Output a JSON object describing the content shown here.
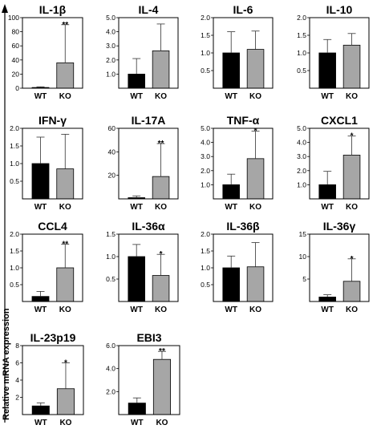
{
  "figure": {
    "ylabel": "Relative mRNA expression"
  },
  "colors": {
    "wt_bar": "#000000",
    "ko_bar": "#a6a6a6",
    "error_bar": "#333333",
    "axis": "#000000"
  },
  "chart_data": [
    {
      "type": "bar",
      "title": "IL-1β",
      "categories": [
        "WT",
        "KO"
      ],
      "values": [
        1,
        36
      ],
      "errors": [
        1,
        54
      ],
      "ylim": [
        0,
        100
      ],
      "yticks": [
        "0",
        "20",
        "40",
        "60",
        "80",
        "100"
      ],
      "annotations": [
        "",
        "**"
      ]
    },
    {
      "type": "bar",
      "title": "IL-4",
      "categories": [
        "WT",
        "KO"
      ],
      "values": [
        1.0,
        2.65
      ],
      "errors": [
        1.1,
        1.9
      ],
      "ylim": [
        0,
        5
      ],
      "yticks": [
        "1.0",
        "2.0",
        "3.0",
        "4.0",
        "5.0"
      ],
      "annotations": [
        "",
        ""
      ]
    },
    {
      "type": "bar",
      "title": "IL-6",
      "categories": [
        "WT",
        "KO"
      ],
      "values": [
        1.0,
        1.1
      ],
      "errors": [
        0.6,
        0.52
      ],
      "ylim": [
        0,
        2
      ],
      "yticks": [
        "0.5",
        "1.0",
        "1.5",
        "2.0"
      ],
      "annotations": [
        "",
        ""
      ]
    },
    {
      "type": "bar",
      "title": "IL-10",
      "categories": [
        "WT",
        "KO"
      ],
      "values": [
        1.0,
        1.22
      ],
      "errors": [
        0.38,
        0.33
      ],
      "ylim": [
        0,
        2
      ],
      "yticks": [
        "0.5",
        "1.0",
        "1.5",
        "2.0"
      ],
      "annotations": [
        "",
        ""
      ]
    },
    {
      "type": "bar",
      "title": "IFN-γ",
      "categories": [
        "WT",
        "KO"
      ],
      "values": [
        1.0,
        0.85
      ],
      "errors": [
        0.75,
        0.98
      ],
      "ylim": [
        0,
        2
      ],
      "yticks": [
        "0.5",
        "1.0",
        "1.5",
        "2.0"
      ],
      "annotations": [
        "",
        ""
      ]
    },
    {
      "type": "bar",
      "title": "IL-17A",
      "categories": [
        "WT",
        "KO"
      ],
      "values": [
        1,
        19
      ],
      "errors": [
        1.5,
        28
      ],
      "ylim": [
        0,
        60
      ],
      "yticks": [
        "20",
        "40",
        "60"
      ],
      "annotations": [
        "",
        "**"
      ]
    },
    {
      "type": "bar",
      "title": "TNF-α",
      "categories": [
        "WT",
        "KO"
      ],
      "values": [
        1.0,
        2.85
      ],
      "errors": [
        0.75,
        1.95
      ],
      "ylim": [
        0,
        5
      ],
      "yticks": [
        "1.0",
        "2.0",
        "3.0",
        "4.0",
        "5.0"
      ],
      "annotations": [
        "",
        "*"
      ]
    },
    {
      "type": "bar",
      "title": "CXCL1",
      "categories": [
        "WT",
        "KO"
      ],
      "values": [
        1.0,
        3.1
      ],
      "errors": [
        0.95,
        1.35
      ],
      "ylim": [
        0,
        5
      ],
      "yticks": [
        "1.0",
        "2.0",
        "3.0",
        "4.0",
        "5.0"
      ],
      "annotations": [
        "",
        "*"
      ]
    },
    {
      "type": "bar",
      "title": "CCL4",
      "categories": [
        "WT",
        "KO"
      ],
      "values": [
        0.15,
        1.0
      ],
      "errors": [
        0.15,
        0.7
      ],
      "ylim": [
        0,
        2
      ],
      "yticks": [
        "0.5",
        "1.0",
        "1.5",
        "2.0"
      ],
      "annotations": [
        "",
        "**"
      ]
    },
    {
      "type": "bar",
      "title": "IL-36α",
      "categories": [
        "WT",
        "KO"
      ],
      "values": [
        1.0,
        0.58
      ],
      "errors": [
        0.27,
        0.47
      ],
      "ylim": [
        0,
        1.5
      ],
      "yticks": [
        "0.5",
        "1.0",
        "1.5"
      ],
      "annotations": [
        "",
        "*"
      ]
    },
    {
      "type": "bar",
      "title": "IL-36β",
      "categories": [
        "WT",
        "KO"
      ],
      "values": [
        1.0,
        1.03
      ],
      "errors": [
        0.35,
        0.72
      ],
      "ylim": [
        0,
        2
      ],
      "yticks": [
        "0.5",
        "1.0",
        "1.5",
        "2.0"
      ],
      "annotations": [
        "",
        ""
      ]
    },
    {
      "type": "bar",
      "title": "IL-36γ",
      "categories": [
        "WT",
        "KO"
      ],
      "values": [
        1.0,
        4.5
      ],
      "errors": [
        0.5,
        5.0
      ],
      "ylim": [
        0,
        15
      ],
      "yticks": [
        "5",
        "10",
        "15"
      ],
      "annotations": [
        "",
        "*"
      ]
    },
    {
      "type": "bar",
      "title": "IL-23p19",
      "categories": [
        "WT",
        "KO"
      ],
      "values": [
        1.0,
        3.0
      ],
      "errors": [
        0.35,
        3.0
      ],
      "ylim": [
        0,
        8
      ],
      "yticks": [
        "2",
        "4",
        "6",
        "8"
      ],
      "annotations": [
        "",
        "*"
      ]
    },
    {
      "type": "bar",
      "title": "EBI3",
      "categories": [
        "WT",
        "KO"
      ],
      "values": [
        1.0,
        4.8
      ],
      "errors": [
        0.45,
        0.7
      ],
      "ylim": [
        0,
        6
      ],
      "yticks": [
        "2.0",
        "4.0",
        "6.0"
      ],
      "annotations": [
        "",
        "**"
      ]
    }
  ]
}
